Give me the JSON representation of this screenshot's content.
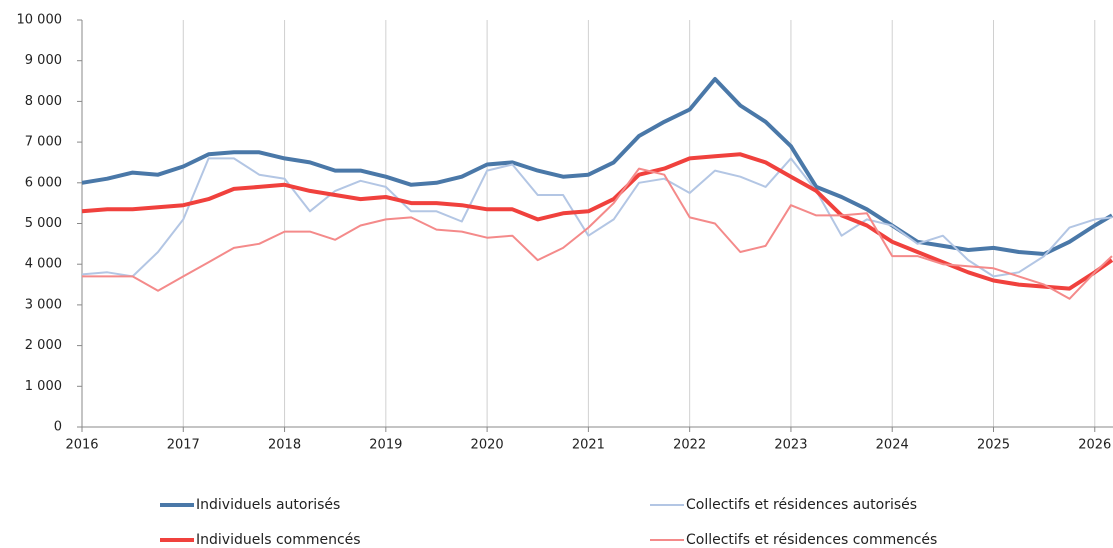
{
  "chart_data": {
    "type": "line",
    "x": [
      2016,
      2016.25,
      2016.5,
      2016.75,
      2017,
      2017.25,
      2017.5,
      2017.75,
      2018,
      2018.25,
      2018.5,
      2018.75,
      2019,
      2019.25,
      2019.5,
      2019.75,
      2020,
      2020.25,
      2020.5,
      2020.75,
      2021,
      2021.25,
      2021.5,
      2021.75,
      2022,
      2022.25,
      2022.5,
      2022.75,
      2023,
      2023.25,
      2023.5,
      2023.75,
      2024,
      2024.25,
      2024.5,
      2024.75,
      2025,
      2025.25,
      2025.5,
      2025.75,
      2026,
      2026.17
    ],
    "series": [
      {
        "name": "Individuels autorisés",
        "color": "#4a78a8",
        "width": 4,
        "values": [
          6000,
          6100,
          6250,
          6200,
          6400,
          6700,
          6750,
          6750,
          6600,
          6500,
          6300,
          6300,
          6150,
          5950,
          6000,
          6150,
          6450,
          6500,
          6300,
          6150,
          6200,
          6500,
          7150,
          7500,
          7800,
          8550,
          7900,
          7500,
          6900,
          5900,
          5650,
          5350,
          4950,
          4550,
          4450,
          4350,
          4400,
          4300,
          4250,
          4550,
          4950,
          5200
        ]
      },
      {
        "name": "Collectifs et résidences autorisés",
        "color": "#b3c6e4",
        "width": 2,
        "values": [
          3750,
          3800,
          3700,
          4300,
          5100,
          6600,
          6600,
          6200,
          6100,
          5300,
          5800,
          6050,
          5900,
          5300,
          5300,
          5050,
          6300,
          6450,
          5700,
          5700,
          4700,
          5100,
          6000,
          6100,
          5750,
          6300,
          6150,
          5900,
          6600,
          5800,
          4700,
          5100,
          4950,
          4500,
          4700,
          4100,
          3700,
          3800,
          4200,
          4900,
          5100,
          5150
        ]
      },
      {
        "name": "Individuels commencés",
        "color": "#f0413d",
        "width": 4,
        "values": [
          5300,
          5350,
          5350,
          5400,
          5450,
          5600,
          5850,
          5900,
          5950,
          5800,
          5700,
          5600,
          5650,
          5500,
          5500,
          5450,
          5350,
          5350,
          5100,
          5250,
          5300,
          5600,
          6200,
          6350,
          6600,
          6650,
          6700,
          6500,
          6150,
          5800,
          5200,
          4950,
          4550,
          4300,
          4050,
          3800,
          3600,
          3500,
          3450,
          3400,
          3800,
          4100
        ]
      },
      {
        "name": "Collectifs et résidences commencés",
        "color": "#f48a8a",
        "width": 2,
        "values": [
          3700,
          3700,
          3700,
          3350,
          3700,
          4050,
          4400,
          4500,
          4800,
          4800,
          4600,
          4950,
          5100,
          5150,
          4850,
          4800,
          4650,
          4700,
          4100,
          4400,
          4900,
          5500,
          6350,
          6200,
          5150,
          5000,
          4300,
          4450,
          5450,
          5200,
          5200,
          5250,
          4200,
          4200,
          4000,
          3950,
          3900,
          3700,
          3500,
          3150,
          3800,
          4200
        ]
      }
    ],
    "xlim": [
      2016,
      2026.18
    ],
    "xticks": [
      2016,
      2017,
      2018,
      2019,
      2020,
      2021,
      2022,
      2023,
      2024,
      2025,
      2026
    ],
    "ylim": [
      0,
      10000
    ],
    "yticks": [
      0,
      {
        "value": 1000,
        "label": "1 000"
      },
      {
        "value": 2000,
        "label": "2 000"
      },
      {
        "value": 3000,
        "label": "3 000"
      },
      {
        "value": 4000,
        "label": "4 000"
      },
      {
        "value": 5000,
        "label": "5 000"
      },
      {
        "value": 6000,
        "label": "6 000"
      },
      {
        "value": 7000,
        "label": "7 000"
      },
      {
        "value": 8000,
        "label": "8 000"
      },
      {
        "value": 9000,
        "label": "9 000"
      },
      {
        "value": 10000,
        "label": "10 000"
      }
    ],
    "grid": "x",
    "legend": "bottom"
  }
}
